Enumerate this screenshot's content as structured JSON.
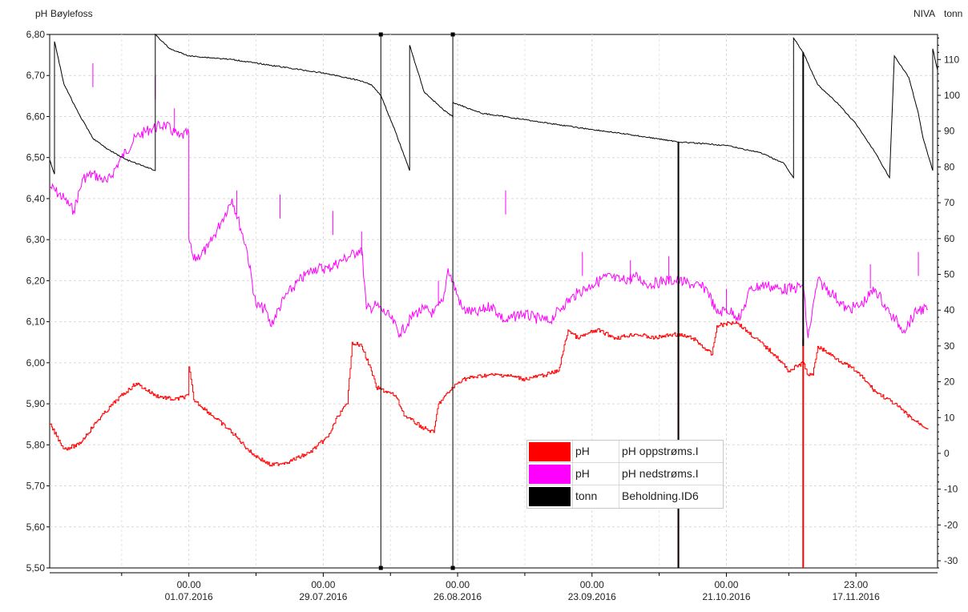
{
  "header": {
    "left_unit": "pH",
    "left_title": "Bøylefoss",
    "right_title": "NIVA",
    "right_unit": "tonn"
  },
  "legend": [
    {
      "color": "#ff0000",
      "unit": "pH",
      "name": "pH oppstrøms.I"
    },
    {
      "color": "#ff00ff",
      "unit": "pH",
      "name": "pH nedstrøms.I"
    },
    {
      "color": "#000000",
      "unit": "tonn",
      "name": "Beholdning.ID6"
    }
  ],
  "chart_data": {
    "type": "line",
    "x_range": [
      "2016-06-02",
      "2016-12-04"
    ],
    "x_ticks": [
      {
        "date": "2016-07-01",
        "time": "00.00",
        "label": "01.07.2016"
      },
      {
        "date": "2016-07-29",
        "time": "00.00",
        "label": "29.07.2016"
      },
      {
        "date": "2016-08-26",
        "time": "00.00",
        "label": "26.08.2016"
      },
      {
        "date": "2016-09-23",
        "time": "00.00",
        "label": "23.09.2016"
      },
      {
        "date": "2016-10-21",
        "time": "00.00",
        "label": "21.10.2016"
      },
      {
        "date": "2016-11-17",
        "time": "23.00",
        "label": "17.11.2016"
      }
    ],
    "y_left": {
      "unit": "pH",
      "range": [
        5.5,
        6.8
      ],
      "ticks": [
        "6,80",
        "6,70",
        "6,60",
        "6,50",
        "6,40",
        "6,30",
        "6,20",
        "6,10",
        "6,00",
        "5,90",
        "5,80",
        "5,70",
        "5,60",
        "5,50"
      ]
    },
    "y_right": {
      "unit": "tonn",
      "range": [
        -32,
        117
      ],
      "ticks": [
        "110",
        "100",
        "90",
        "80",
        "70",
        "60",
        "50",
        "40",
        "30",
        "20",
        "10",
        "0",
        "-10",
        "-20",
        "-30"
      ]
    },
    "grid": true,
    "legend_position": "bottom-center",
    "series": [
      {
        "name": "pH oppstrøms.I",
        "unit": "pH",
        "axis": "left",
        "color": "#ff0000",
        "points": [
          [
            "2016-06-02",
            5.85
          ],
          [
            "2016-06-05",
            5.79
          ],
          [
            "2016-06-08",
            5.8
          ],
          [
            "2016-06-12",
            5.86
          ],
          [
            "2016-06-16",
            5.91
          ],
          [
            "2016-06-20",
            5.95
          ],
          [
            "2016-06-24",
            5.92
          ],
          [
            "2016-06-28",
            5.91
          ],
          [
            "2016-07-01",
            5.92
          ],
          [
            "2016-07-01",
            5.99
          ],
          [
            "2016-07-02",
            5.91
          ],
          [
            "2016-07-06",
            5.87
          ],
          [
            "2016-07-10",
            5.83
          ],
          [
            "2016-07-14",
            5.78
          ],
          [
            "2016-07-18",
            5.75
          ],
          [
            "2016-07-22",
            5.76
          ],
          [
            "2016-07-26",
            5.78
          ],
          [
            "2016-07-30",
            5.82
          ],
          [
            "2016-08-01",
            5.87
          ],
          [
            "2016-08-03",
            5.9
          ],
          [
            "2016-08-04",
            6.05
          ],
          [
            "2016-08-06",
            6.04
          ],
          [
            "2016-08-08",
            5.98
          ],
          [
            "2016-08-09",
            5.94
          ],
          [
            "2016-08-13",
            5.92
          ],
          [
            "2016-08-15",
            5.87
          ],
          [
            "2016-08-19",
            5.84
          ],
          [
            "2016-08-21",
            5.83
          ],
          [
            "2016-08-22",
            5.9
          ],
          [
            "2016-08-25",
            5.94
          ],
          [
            "2016-08-27",
            5.96
          ],
          [
            "2016-09-01",
            5.97
          ],
          [
            "2016-09-05",
            5.97
          ],
          [
            "2016-09-09",
            5.96
          ],
          [
            "2016-09-13",
            5.97
          ],
          [
            "2016-09-16",
            5.98
          ],
          [
            "2016-09-18",
            6.08
          ],
          [
            "2016-09-20",
            6.06
          ],
          [
            "2016-09-24",
            6.08
          ],
          [
            "2016-09-28",
            6.06
          ],
          [
            "2016-10-02",
            6.07
          ],
          [
            "2016-10-06",
            6.06
          ],
          [
            "2016-10-10",
            6.07
          ],
          [
            "2016-10-14",
            6.06
          ],
          [
            "2016-10-18",
            6.02
          ],
          [
            "2016-10-19",
            6.09
          ],
          [
            "2016-10-23",
            6.1
          ],
          [
            "2016-10-27",
            6.06
          ],
          [
            "2016-10-31",
            6.02
          ],
          [
            "2016-11-03",
            5.98
          ],
          [
            "2016-11-06",
            6.0
          ],
          [
            "2016-11-07",
            5.97
          ],
          [
            "2016-11-08",
            5.97
          ],
          [
            "2016-11-09",
            6.04
          ],
          [
            "2016-11-13",
            6.01
          ],
          [
            "2016-11-17",
            5.98
          ],
          [
            "2016-11-21",
            5.93
          ],
          [
            "2016-11-25",
            5.9
          ],
          [
            "2016-11-29",
            5.86
          ],
          [
            "2016-12-02",
            5.84
          ]
        ],
        "spikes": [
          {
            "date": "2016-10-11",
            "to": 5.5
          },
          {
            "date": "2016-11-06",
            "to": 5.5
          }
        ]
      },
      {
        "name": "pH nedstrøms.I",
        "unit": "pH",
        "axis": "left",
        "color": "#ff00ff",
        "points": [
          [
            "2016-06-02",
            6.43
          ],
          [
            "2016-06-05",
            6.4
          ],
          [
            "2016-06-07",
            6.37
          ],
          [
            "2016-06-09",
            6.45
          ],
          [
            "2016-06-11",
            6.46
          ],
          [
            "2016-06-14",
            6.44
          ],
          [
            "2016-06-17",
            6.5
          ],
          [
            "2016-06-20",
            6.55
          ],
          [
            "2016-06-23",
            6.57
          ],
          [
            "2016-06-26",
            6.58
          ],
          [
            "2016-06-29",
            6.55
          ],
          [
            "2016-07-01",
            6.56
          ],
          [
            "2016-07-01",
            6.3
          ],
          [
            "2016-07-02",
            6.25
          ],
          [
            "2016-07-05",
            6.28
          ],
          [
            "2016-07-08",
            6.35
          ],
          [
            "2016-07-10",
            6.4
          ],
          [
            "2016-07-13",
            6.28
          ],
          [
            "2016-07-15",
            6.14
          ],
          [
            "2016-07-17",
            6.13
          ],
          [
            "2016-07-18",
            6.09
          ],
          [
            "2016-07-21",
            6.16
          ],
          [
            "2016-07-24",
            6.2
          ],
          [
            "2016-07-27",
            6.23
          ],
          [
            "2016-07-30",
            6.23
          ],
          [
            "2016-08-02",
            6.25
          ],
          [
            "2016-08-05",
            6.27
          ],
          [
            "2016-08-06",
            6.28
          ],
          [
            "2016-08-07",
            6.13
          ],
          [
            "2016-08-09",
            6.14
          ],
          [
            "2016-08-12",
            6.11
          ],
          [
            "2016-08-14",
            6.07
          ],
          [
            "2016-08-17",
            6.12
          ],
          [
            "2016-08-19",
            6.13
          ],
          [
            "2016-08-21",
            6.12
          ],
          [
            "2016-08-23",
            6.15
          ],
          [
            "2016-08-24",
            6.23
          ],
          [
            "2016-08-27",
            6.13
          ],
          [
            "2016-08-30",
            6.12
          ],
          [
            "2016-09-02",
            6.14
          ],
          [
            "2016-09-05",
            6.1
          ],
          [
            "2016-09-08",
            6.12
          ],
          [
            "2016-09-11",
            6.11
          ],
          [
            "2016-09-14",
            6.1
          ],
          [
            "2016-09-17",
            6.14
          ],
          [
            "2016-09-20",
            6.17
          ],
          [
            "2016-09-23",
            6.19
          ],
          [
            "2016-09-26",
            6.21
          ],
          [
            "2016-09-29",
            6.2
          ],
          [
            "2016-10-02",
            6.21
          ],
          [
            "2016-10-05",
            6.19
          ],
          [
            "2016-10-08",
            6.2
          ],
          [
            "2016-10-11",
            6.2
          ],
          [
            "2016-10-14",
            6.19
          ],
          [
            "2016-10-17",
            6.18
          ],
          [
            "2016-10-19",
            6.12
          ],
          [
            "2016-10-21",
            6.13
          ],
          [
            "2016-10-24",
            6.11
          ],
          [
            "2016-10-26",
            6.18
          ],
          [
            "2016-10-29",
            6.19
          ],
          [
            "2016-11-01",
            6.18
          ],
          [
            "2016-11-04",
            6.18
          ],
          [
            "2016-11-06",
            6.19
          ],
          [
            "2016-11-07",
            6.06
          ],
          [
            "2016-11-09",
            6.2
          ],
          [
            "2016-11-12",
            6.17
          ],
          [
            "2016-11-15",
            6.13
          ],
          [
            "2016-11-18",
            6.14
          ],
          [
            "2016-11-21",
            6.18
          ],
          [
            "2016-11-24",
            6.12
          ],
          [
            "2016-11-27",
            6.08
          ],
          [
            "2016-11-30",
            6.13
          ],
          [
            "2016-12-02",
            6.13
          ]
        ]
      },
      {
        "name": "Beholdning.ID6",
        "unit": "tonn",
        "axis": "right",
        "color": "#000000",
        "points": [
          [
            "2016-06-02",
            82
          ],
          [
            "2016-06-03",
            78
          ],
          [
            "2016-06-03",
            115
          ],
          [
            "2016-06-05",
            103
          ],
          [
            "2016-06-08",
            95
          ],
          [
            "2016-06-11",
            88
          ],
          [
            "2016-06-14",
            85
          ],
          [
            "2016-06-18",
            82
          ],
          [
            "2016-06-22",
            80
          ],
          [
            "2016-06-24",
            79
          ],
          [
            "2016-06-24",
            117
          ],
          [
            "2016-06-27",
            113
          ],
          [
            "2016-07-01",
            111
          ],
          [
            "2016-07-10",
            110
          ],
          [
            "2016-07-20",
            108
          ],
          [
            "2016-07-30",
            106
          ],
          [
            "2016-08-06",
            104
          ],
          [
            "2016-08-08",
            103
          ],
          [
            "2016-08-10",
            100
          ],
          [
            "2016-08-13",
            90
          ],
          [
            "2016-08-16",
            79
          ],
          [
            "2016-08-16",
            114
          ],
          [
            "2016-08-19",
            101
          ],
          [
            "2016-08-23",
            96
          ],
          [
            "2016-08-25",
            94
          ],
          [
            "2016-08-25",
            98
          ],
          [
            "2016-08-31",
            95
          ],
          [
            "2016-09-10",
            93
          ],
          [
            "2016-09-20",
            91
          ],
          [
            "2016-10-01",
            89
          ],
          [
            "2016-10-11",
            87
          ],
          [
            "2016-10-21",
            86
          ],
          [
            "2016-10-28",
            84
          ],
          [
            "2016-11-02",
            81
          ],
          [
            "2016-11-04",
            77
          ],
          [
            "2016-11-04",
            116
          ],
          [
            "2016-11-06",
            112
          ],
          [
            "2016-11-09",
            103
          ],
          [
            "2016-11-13",
            98
          ],
          [
            "2016-11-17",
            92
          ],
          [
            "2016-11-21",
            84
          ],
          [
            "2016-11-24",
            77
          ],
          [
            "2016-11-25",
            111
          ],
          [
            "2016-11-28",
            105
          ],
          [
            "2016-11-30",
            95
          ],
          [
            "2016-12-01",
            88
          ],
          [
            "2016-12-03",
            79
          ],
          [
            "2016-12-03",
            113
          ],
          [
            "2016-12-04",
            107
          ]
        ],
        "spikes": [
          {
            "date": "2016-10-11",
            "from": 87,
            "to": -32
          },
          {
            "date": "2016-11-06",
            "from": 112,
            "to": 30
          }
        ]
      }
    ],
    "cursors": [
      "2016-08-10",
      "2016-08-25"
    ]
  }
}
